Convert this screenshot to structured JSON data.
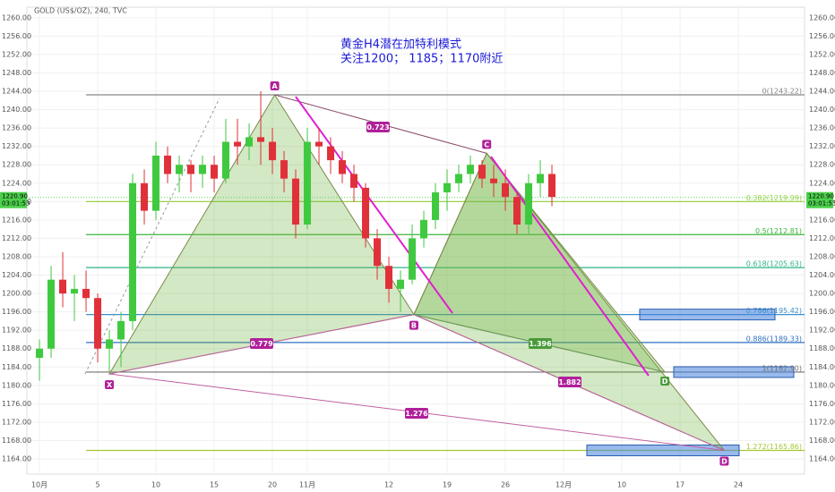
{
  "chart_data": {
    "type": "candlestick",
    "title": "GOLD (US$/OZ), 240, TVC",
    "annotations": [
      "黄金H4潜在加特利模式",
      "关注1200； 1185；1170附近"
    ],
    "xlim": [
      -1.08,
      65.69
    ],
    "ylim": [
      1160.7,
      1262.3
    ],
    "xticks": [
      {
        "value": 0,
        "label": "10月"
      },
      5,
      10,
      15,
      20,
      {
        "value": 23,
        "label": "11月"
      },
      {
        "value": 30,
        "label": "12"
      },
      {
        "value": 35,
        "label": "19"
      },
      {
        "value": 40,
        "label": "26"
      },
      {
        "value": 45,
        "label": "12月"
      },
      {
        "value": 50,
        "label": "10"
      },
      {
        "value": 55,
        "label": "17"
      },
      {
        "value": 60,
        "label": "24"
      }
    ],
    "yticks": [
      {
        "value": 1164,
        "label": "1164.00"
      },
      {
        "value": 1168,
        "label": "1168.00"
      },
      {
        "value": 1172,
        "label": "1172.00"
      },
      {
        "value": 1176,
        "label": "1176.00"
      },
      {
        "value": 1180,
        "label": "1180.00"
      },
      {
        "value": 1184,
        "label": "1184.00"
      },
      {
        "value": 1188,
        "label": "1188.00"
      },
      {
        "value": 1192,
        "label": "1192.00"
      },
      {
        "value": 1196,
        "label": "1196.00"
      },
      {
        "value": 1200,
        "label": "1200.00"
      },
      {
        "value": 1204,
        "label": "1204.00"
      },
      {
        "value": 1208,
        "label": "1208.00"
      },
      {
        "value": 1212,
        "label": "1212.00"
      },
      {
        "value": 1216,
        "label": "1216.00"
      },
      {
        "value": 1220,
        "label": "1220.00"
      },
      {
        "value": 1224,
        "label": "1224.00"
      },
      {
        "value": 1228,
        "label": "1228.00"
      },
      {
        "value": 1232,
        "label": "1232.00"
      },
      {
        "value": 1236,
        "label": "1236.00"
      },
      {
        "value": 1240,
        "label": "1240.00"
      },
      {
        "value": 1244,
        "label": "1244.00"
      },
      {
        "value": 1248,
        "label": "1248.00"
      },
      {
        "value": 1252,
        "label": "1252.00"
      },
      {
        "value": 1256,
        "label": "1256.00"
      },
      {
        "value": 1260,
        "label": "1260.00"
      }
    ],
    "grid": true,
    "up_color": "#3fc93f",
    "down_color": "#e0303a",
    "x": [
      0,
      1,
      2,
      3,
      4,
      5,
      6,
      7,
      8,
      9,
      10,
      11,
      12,
      13,
      14,
      15,
      16,
      17,
      18,
      19,
      20,
      21,
      22,
      23,
      24,
      25,
      26,
      27,
      28,
      29,
      30,
      31,
      32,
      33,
      34,
      35,
      36,
      37,
      38,
      39,
      40,
      41,
      42,
      43,
      44
    ],
    "open": [
      1186,
      1188,
      1203,
      1200,
      1201,
      1199,
      1188,
      1190,
      1194,
      1224,
      1218,
      1230,
      1226,
      1228,
      1226,
      1228,
      1225,
      1233,
      1232,
      1234,
      1233,
      1229,
      1225,
      1215,
      1233,
      1232,
      1229,
      1226,
      1223,
      1212,
      1206,
      1201,
      1203,
      1212,
      1216,
      1222,
      1224,
      1226,
      1228,
      1225,
      1224,
      1221,
      1215,
      1224,
      1226
    ],
    "high": [
      1190,
      1206,
      1209,
      1204,
      1205,
      1200,
      1192,
      1196,
      1226,
      1227,
      1233,
      1232,
      1230,
      1229,
      1230,
      1230,
      1238,
      1238,
      1237,
      1244,
      1236,
      1231,
      1227,
      1236,
      1236,
      1234,
      1231,
      1228,
      1224,
      1214,
      1208,
      1205,
      1215,
      1218,
      1224,
      1227,
      1228,
      1230,
      1229,
      1228,
      1227,
      1222,
      1226,
      1229,
      1228
    ],
    "low": [
      1181,
      1186,
      1197,
      1194,
      1196,
      1185,
      1183,
      1184,
      1192,
      1215,
      1216,
      1224,
      1222,
      1222,
      1223,
      1222,
      1224,
      1228,
      1229,
      1228,
      1226,
      1222,
      1212,
      1214,
      1228,
      1226,
      1224,
      1220,
      1210,
      1203,
      1198,
      1196,
      1202,
      1210,
      1214,
      1218,
      1222,
      1224,
      1223,
      1221,
      1218,
      1213,
      1213,
      1221,
      1219
    ],
    "close": [
      1188,
      1203,
      1200,
      1201,
      1199,
      1188,
      1190,
      1194,
      1224,
      1218,
      1230,
      1226,
      1228,
      1226,
      1228,
      1225,
      1233,
      1232,
      1234,
      1233,
      1229,
      1225,
      1215,
      1233,
      1232,
      1229,
      1226,
      1223,
      1212,
      1206,
      1201,
      1203,
      1212,
      1216,
      1222,
      1224,
      1226,
      1228,
      1225,
      1224,
      1221,
      1215,
      1224,
      1226,
      1221
    ],
    "last_price": {
      "value": 1220.9,
      "label": "1220.90"
    },
    "countdown": "03:01:53",
    "fib_levels": [
      {
        "value": 1243.22,
        "label": "0(1243.22)",
        "color": "#888888"
      },
      {
        "value": 1219.99,
        "label": "0.382(1219.99)",
        "color": "#9ad24a"
      },
      {
        "value": 1212.81,
        "label": "0.5(1212.81)",
        "color": "#3cb43c"
      },
      {
        "value": 1205.63,
        "label": "0.618(1205.63)",
        "color": "#2fb48a"
      },
      {
        "value": 1195.42,
        "label": "0.786(1195.42)",
        "color": "#3a8fd0"
      },
      {
        "value": 1189.33,
        "label": "0.886(1189.33)",
        "color": "#3070c0"
      },
      {
        "value": 1182.9,
        "label": "1(1182.90)",
        "color": "#707070"
      },
      {
        "value": 1165.86,
        "label": "1.272(1165.86)",
        "color": "#a6c832"
      }
    ],
    "pattern_points": [
      {
        "label": "X",
        "x": 6,
        "y": 1182.5
      },
      {
        "label": "A",
        "x": 20.2,
        "y": 1243.22
      },
      {
        "label": "B",
        "x": 32.15,
        "y": 1195.42
      },
      {
        "label": "C",
        "x": 38.4,
        "y": 1230.5
      },
      {
        "label": "D",
        "x": 53.7,
        "y": 1182.9
      },
      {
        "label": "D",
        "x": 58.8,
        "y": 1165.86
      }
    ],
    "ratios": [
      0.723,
      0.779,
      1.396,
      1.882,
      1.276
    ]
  }
}
